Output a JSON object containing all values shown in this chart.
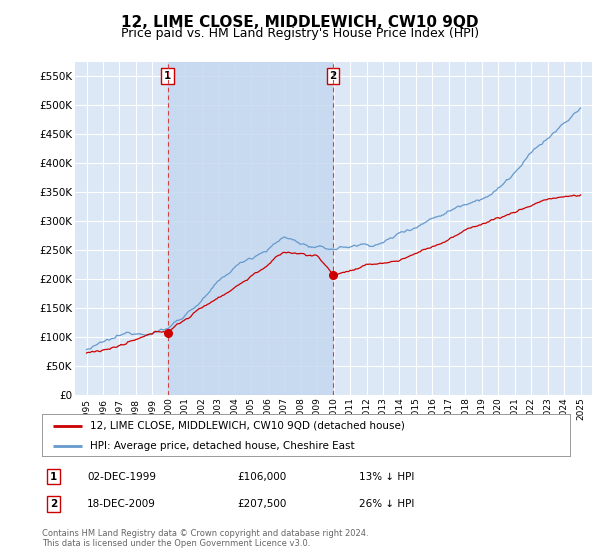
{
  "title": "12, LIME CLOSE, MIDDLEWICH, CW10 9QD",
  "subtitle": "Price paid vs. HM Land Registry's House Price Index (HPI)",
  "ylim": [
    0,
    575000
  ],
  "yticks": [
    0,
    50000,
    100000,
    150000,
    200000,
    250000,
    300000,
    350000,
    400000,
    450000,
    500000,
    550000
  ],
  "ytick_labels": [
    "£0",
    "£50K",
    "£100K",
    "£150K",
    "£200K",
    "£250K",
    "£300K",
    "£350K",
    "£400K",
    "£450K",
    "£500K",
    "£550K"
  ],
  "plot_bg_color": "#dce8f5",
  "grid_color": "#ffffff",
  "sale1_date": 1999.917,
  "sale1_price": 106000,
  "sale2_date": 2009.958,
  "sale2_price": 207500,
  "legend_line1": "12, LIME CLOSE, MIDDLEWICH, CW10 9QD (detached house)",
  "legend_line2": "HPI: Average price, detached house, Cheshire East",
  "annotation1_date": "02-DEC-1999",
  "annotation1_price": "£106,000",
  "annotation1_note": "13% ↓ HPI",
  "annotation2_date": "18-DEC-2009",
  "annotation2_price": "£207,500",
  "annotation2_note": "26% ↓ HPI",
  "footer": "Contains HM Land Registry data © Crown copyright and database right 2024.\nThis data is licensed under the Open Government Licence v3.0.",
  "red_line_color": "#cc0000",
  "blue_line_color": "#6699cc",
  "shade_color": "#c5d8f0",
  "title_fontsize": 11,
  "subtitle_fontsize": 9
}
